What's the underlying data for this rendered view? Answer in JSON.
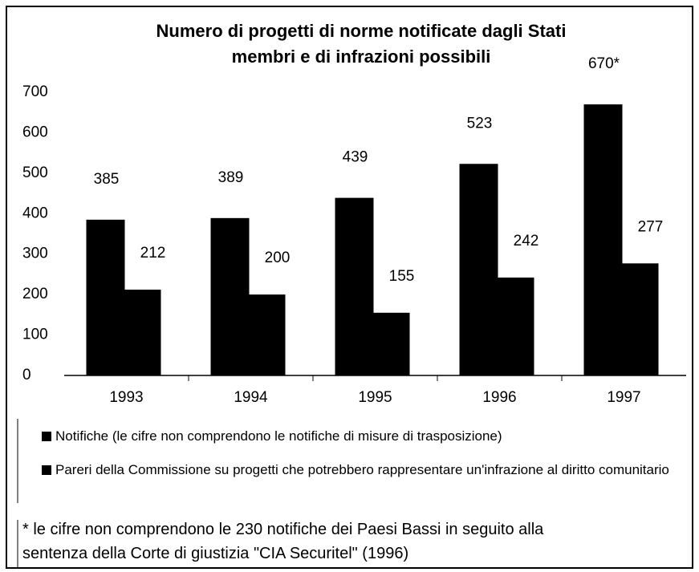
{
  "chart_data": {
    "type": "bar",
    "title": [
      "Numero di progetti di norme notificate dagli Stati",
      "membri e di infrazioni possibili"
    ],
    "categories": [
      "1993",
      "1994",
      "1995",
      "1996",
      "1997"
    ],
    "series": [
      {
        "name": "Notifiche (le cifre non comprendono le notifiche di misure di trasposizione)",
        "color": "#000000",
        "values": [
          385,
          389,
          439,
          523,
          670
        ],
        "value_labels": [
          "385",
          "389",
          "439",
          "523",
          "670*"
        ]
      },
      {
        "name": "Pareri della Commissione su progetti che potrebbero rappresentare un'infrazione al diritto comunitario",
        "color": "#000000",
        "values": [
          212,
          200,
          155,
          242,
          277
        ]
      }
    ],
    "ylim": [
      0,
      700
    ],
    "yticks": [
      0,
      100,
      200,
      300,
      400,
      500,
      600,
      700
    ],
    "grid": false,
    "footnote": [
      "* le cifre non comprendono le 230 notifiche dei Paesi Bassi in seguito alla",
      "sentenza della Corte di giustizia \"CIA Securitel\" (1996)"
    ]
  }
}
